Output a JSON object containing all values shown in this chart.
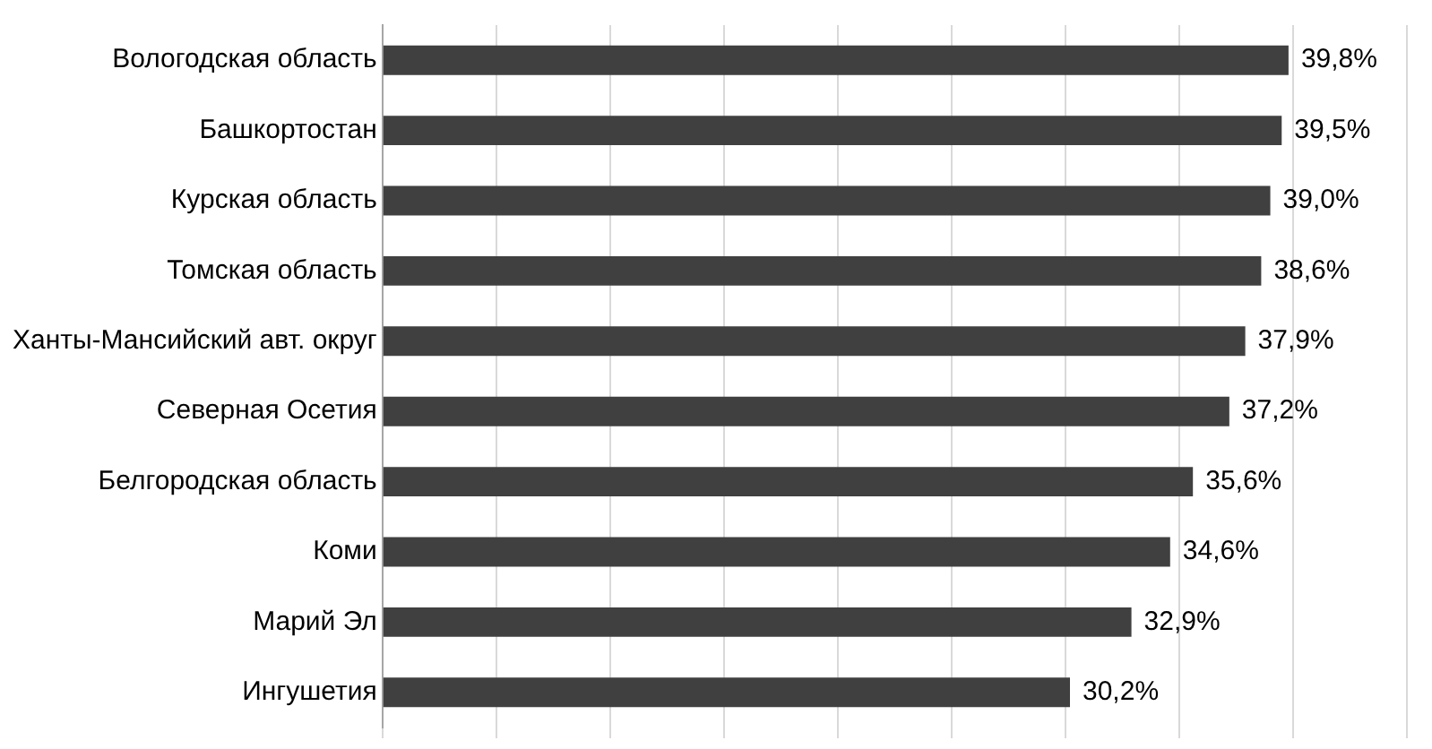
{
  "chart_data": {
    "type": "bar",
    "orientation": "horizontal",
    "categories": [
      "Вологодская область",
      "Башкортостан",
      "Курская область",
      "Томская область",
      "Ханты-Мансийский авт. округ",
      "Северная Осетия",
      "Белгородская область",
      "Коми",
      "Марий Эл",
      "Ингушетия"
    ],
    "values": [
      39.8,
      39.5,
      39.0,
      38.6,
      37.9,
      37.2,
      35.6,
      34.6,
      32.9,
      30.2
    ],
    "value_labels": [
      "39,8%",
      "39,5%",
      "39,0%",
      "38,6%",
      "37,9%",
      "37,2%",
      "35,6%",
      "34,6%",
      "32,9%",
      "30,2%"
    ],
    "color": "#404040",
    "xlim": [
      0,
      45
    ],
    "xticks": [
      {
        "value": 0,
        "label": null
      },
      {
        "value": 5,
        "label": null
      },
      {
        "value": 10,
        "label": null
      },
      {
        "value": 15,
        "label": null
      },
      {
        "value": 20,
        "label": null
      },
      {
        "value": 25,
        "label": null
      },
      {
        "value": 30,
        "label": null
      },
      {
        "value": 35,
        "label": null
      },
      {
        "value": 40,
        "label": null
      },
      {
        "value": 45,
        "label": null
      }
    ],
    "grid": "x",
    "tick_labels": "y",
    "legend": false
  }
}
